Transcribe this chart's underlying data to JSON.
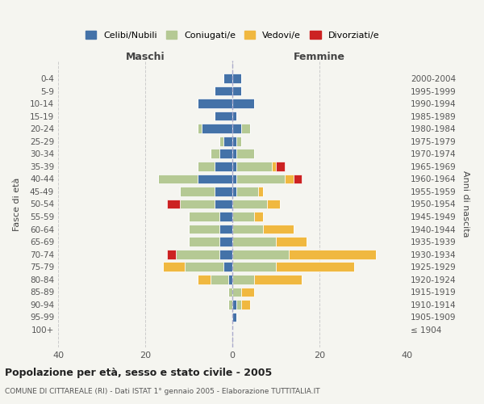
{
  "age_groups": [
    "100+",
    "95-99",
    "90-94",
    "85-89",
    "80-84",
    "75-79",
    "70-74",
    "65-69",
    "60-64",
    "55-59",
    "50-54",
    "45-49",
    "40-44",
    "35-39",
    "30-34",
    "25-29",
    "20-24",
    "15-19",
    "10-14",
    "5-9",
    "0-4"
  ],
  "birth_years": [
    "≤ 1904",
    "1905-1909",
    "1910-1914",
    "1915-1919",
    "1920-1924",
    "1925-1929",
    "1930-1934",
    "1935-1939",
    "1940-1944",
    "1945-1949",
    "1950-1954",
    "1955-1959",
    "1960-1964",
    "1965-1969",
    "1970-1974",
    "1975-1979",
    "1980-1984",
    "1985-1989",
    "1990-1994",
    "1995-1999",
    "2000-2004"
  ],
  "colors": {
    "celibe": "#4472a8",
    "coniugato": "#b5c994",
    "vedovo": "#f0b840",
    "divorziato": "#cc2222"
  },
  "maschi": {
    "celibe": [
      0,
      0,
      0,
      0,
      1,
      2,
      3,
      3,
      3,
      3,
      4,
      4,
      8,
      4,
      3,
      2,
      7,
      4,
      8,
      4,
      2
    ],
    "coniugato": [
      0,
      0,
      1,
      1,
      4,
      9,
      10,
      7,
      7,
      7,
      8,
      8,
      9,
      4,
      2,
      1,
      1,
      0,
      0,
      0,
      0
    ],
    "vedovo": [
      0,
      0,
      0,
      0,
      3,
      5,
      0,
      0,
      0,
      0,
      0,
      0,
      0,
      0,
      0,
      0,
      0,
      0,
      0,
      0,
      0
    ],
    "divorziato": [
      0,
      0,
      0,
      0,
      0,
      0,
      2,
      0,
      0,
      0,
      3,
      0,
      0,
      0,
      0,
      0,
      0,
      0,
      0,
      0,
      0
    ]
  },
  "femmine": {
    "nubile": [
      0,
      1,
      1,
      0,
      0,
      0,
      0,
      0,
      0,
      0,
      0,
      1,
      1,
      1,
      1,
      1,
      2,
      1,
      5,
      2,
      2
    ],
    "coniugata": [
      0,
      0,
      1,
      2,
      5,
      10,
      13,
      10,
      7,
      5,
      8,
      5,
      11,
      8,
      4,
      1,
      2,
      0,
      0,
      0,
      0
    ],
    "vedova": [
      0,
      0,
      2,
      3,
      11,
      18,
      20,
      7,
      7,
      2,
      3,
      1,
      2,
      1,
      0,
      0,
      0,
      0,
      0,
      0,
      0
    ],
    "divorziata": [
      0,
      0,
      0,
      0,
      0,
      0,
      0,
      0,
      0,
      0,
      0,
      0,
      2,
      2,
      0,
      0,
      0,
      0,
      0,
      0,
      0
    ]
  },
  "xlim": 40,
  "title": "Popolazione per età, sesso e stato civile - 2005",
  "subtitle": "COMUNE DI CITTAREALE (RI) - Dati ISTAT 1° gennaio 2005 - Elaborazione TUTTITALIA.IT",
  "ylabel_left": "Fasce di età",
  "ylabel_right": "Anni di nascita",
  "xlabel_maschi": "Maschi",
  "xlabel_femmine": "Femmine",
  "legend_labels": [
    "Celibi/Nubili",
    "Coniugati/e",
    "Vedovi/e",
    "Divorziati/e"
  ],
  "background_color": "#f5f5f0",
  "bar_edge_color": "white"
}
